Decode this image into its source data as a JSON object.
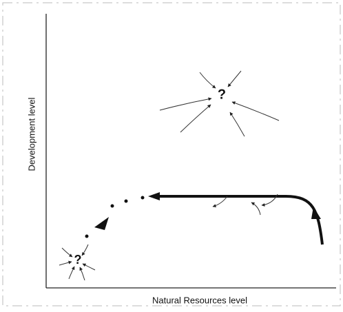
{
  "axes": {
    "y_label": "Development level",
    "x_label": "Natural Resources level"
  },
  "nodes": [
    {
      "label": "?"
    },
    {
      "label": "?"
    }
  ]
}
